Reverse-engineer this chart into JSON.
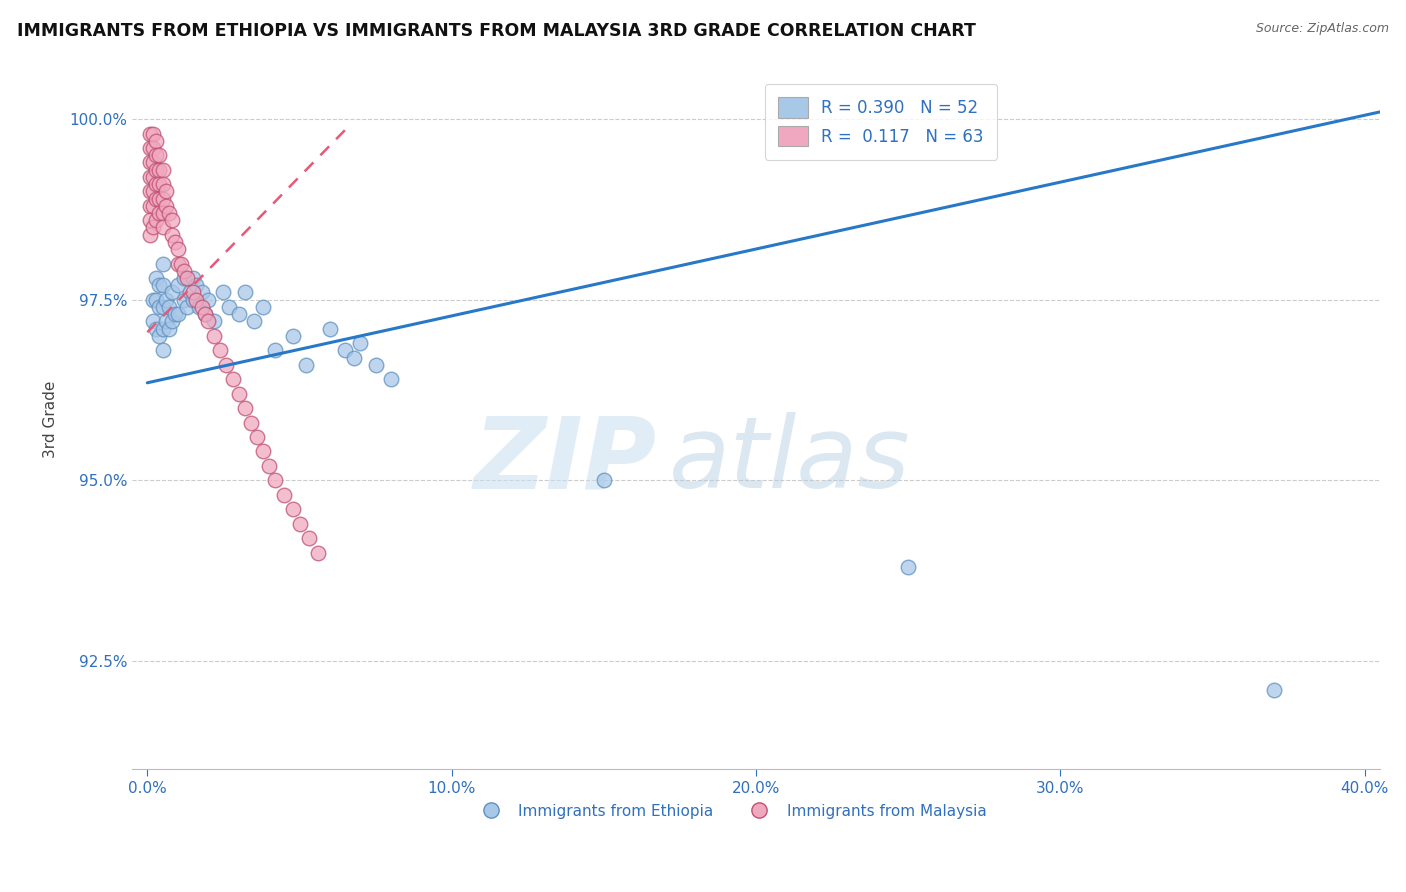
{
  "title": "IMMIGRANTS FROM ETHIOPIA VS IMMIGRANTS FROM MALAYSIA 3RD GRADE CORRELATION CHART",
  "source": "Source: ZipAtlas.com",
  "xlabel": "",
  "ylabel": "3rd Grade",
  "xlim": [
    -0.005,
    0.405
  ],
  "ylim": [
    0.91,
    1.007
  ],
  "ytick_labels": [
    "92.5%",
    "95.0%",
    "97.5%",
    "100.0%"
  ],
  "ytick_values": [
    0.925,
    0.95,
    0.975,
    1.0
  ],
  "xtick_labels": [
    "0.0%",
    "",
    "",
    "",
    "10.0%",
    "",
    "",
    "",
    "",
    "20.0%",
    "",
    "",
    "",
    "",
    "30.0%",
    "",
    "",
    "",
    "",
    "40.0%"
  ],
  "blue_R": 0.39,
  "blue_N": 52,
  "pink_R": 0.117,
  "pink_N": 63,
  "blue_color": "#a8c8e8",
  "pink_color": "#f0a8c0",
  "blue_line_color": "#2878c8",
  "pink_line_color": "#e85878",
  "legend_text_color": "#3070c0",
  "watermark_zip": "ZIP",
  "watermark_atlas": "atlas",
  "blue_line_x": [
    0.0,
    0.405
  ],
  "blue_line_y": [
    0.9635,
    1.001
  ],
  "pink_line_x": [
    0.0,
    0.065
  ],
  "pink_line_y": [
    0.9705,
    0.9985
  ],
  "blue_scatter_x": [
    0.002,
    0.002,
    0.003,
    0.003,
    0.003,
    0.004,
    0.004,
    0.004,
    0.005,
    0.005,
    0.005,
    0.005,
    0.005,
    0.006,
    0.006,
    0.007,
    0.007,
    0.008,
    0.008,
    0.009,
    0.01,
    0.01,
    0.012,
    0.012,
    0.013,
    0.014,
    0.015,
    0.015,
    0.016,
    0.017,
    0.018,
    0.019,
    0.02,
    0.022,
    0.025,
    0.027,
    0.03,
    0.032,
    0.035,
    0.038,
    0.042,
    0.048,
    0.052,
    0.06,
    0.065,
    0.068,
    0.07,
    0.075,
    0.08,
    0.15,
    0.25,
    0.37
  ],
  "blue_scatter_y": [
    0.975,
    0.972,
    0.978,
    0.975,
    0.971,
    0.977,
    0.974,
    0.97,
    0.98,
    0.977,
    0.974,
    0.971,
    0.968,
    0.975,
    0.972,
    0.974,
    0.971,
    0.976,
    0.972,
    0.973,
    0.977,
    0.973,
    0.978,
    0.975,
    0.974,
    0.976,
    0.978,
    0.975,
    0.977,
    0.974,
    0.976,
    0.973,
    0.975,
    0.972,
    0.976,
    0.974,
    0.973,
    0.976,
    0.972,
    0.974,
    0.968,
    0.97,
    0.966,
    0.971,
    0.968,
    0.967,
    0.969,
    0.966,
    0.964,
    0.95,
    0.938,
    0.921
  ],
  "pink_scatter_x": [
    0.001,
    0.001,
    0.001,
    0.001,
    0.001,
    0.001,
    0.001,
    0.001,
    0.002,
    0.002,
    0.002,
    0.002,
    0.002,
    0.002,
    0.002,
    0.003,
    0.003,
    0.003,
    0.003,
    0.003,
    0.003,
    0.004,
    0.004,
    0.004,
    0.004,
    0.004,
    0.005,
    0.005,
    0.005,
    0.005,
    0.005,
    0.006,
    0.006,
    0.007,
    0.008,
    0.008,
    0.009,
    0.01,
    0.01,
    0.011,
    0.012,
    0.013,
    0.015,
    0.016,
    0.018,
    0.019,
    0.02,
    0.022,
    0.024,
    0.026,
    0.028,
    0.03,
    0.032,
    0.034,
    0.036,
    0.038,
    0.04,
    0.042,
    0.045,
    0.048,
    0.05,
    0.053,
    0.056
  ],
  "pink_scatter_y": [
    0.998,
    0.996,
    0.994,
    0.992,
    0.99,
    0.988,
    0.986,
    0.984,
    0.998,
    0.996,
    0.994,
    0.992,
    0.99,
    0.988,
    0.985,
    0.997,
    0.995,
    0.993,
    0.991,
    0.989,
    0.986,
    0.995,
    0.993,
    0.991,
    0.989,
    0.987,
    0.993,
    0.991,
    0.989,
    0.987,
    0.985,
    0.99,
    0.988,
    0.987,
    0.986,
    0.984,
    0.983,
    0.982,
    0.98,
    0.98,
    0.979,
    0.978,
    0.976,
    0.975,
    0.974,
    0.973,
    0.972,
    0.97,
    0.968,
    0.966,
    0.964,
    0.962,
    0.96,
    0.958,
    0.956,
    0.954,
    0.952,
    0.95,
    0.948,
    0.946,
    0.944,
    0.942,
    0.94
  ]
}
